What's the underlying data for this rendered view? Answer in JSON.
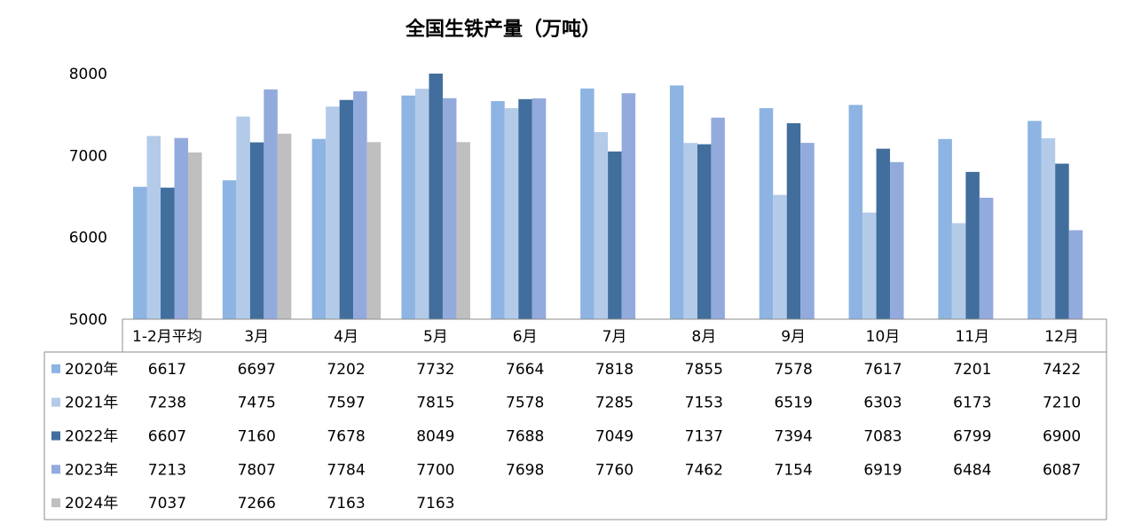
{
  "chart_data": {
    "type": "bar",
    "title": "全国生铁产量（万吨）",
    "xlabel": "",
    "ylabel": "",
    "ylim": [
      5000,
      8000
    ],
    "yticks": [
      5000,
      6000,
      7000,
      8000
    ],
    "grid": false,
    "legend": "in data table, left column",
    "categories": [
      "1-2月平均",
      "3月",
      "4月",
      "5月",
      "6月",
      "7月",
      "8月",
      "9月",
      "10月",
      "11月",
      "12月"
    ],
    "series": [
      {
        "name": "2020年",
        "color": "#8DB4E2",
        "values": [
          6617,
          6697,
          7202,
          7732,
          7664,
          7818,
          7855,
          7578,
          7617,
          7201,
          7422
        ]
      },
      {
        "name": "2021年",
        "color": "#B3CBE9",
        "values": [
          7238,
          7475,
          7597,
          7815,
          7578,
          7285,
          7153,
          6519,
          6303,
          6173,
          7210
        ]
      },
      {
        "name": "2022年",
        "color": "#416E9C",
        "values": [
          6607,
          7160,
          7678,
          8049,
          7688,
          7049,
          7137,
          7394,
          7083,
          6799,
          6900
        ]
      },
      {
        "name": "2023年",
        "color": "#93AADD",
        "values": [
          7213,
          7807,
          7784,
          7700,
          7698,
          7760,
          7462,
          7154,
          6919,
          6484,
          6087
        ]
      },
      {
        "name": "2024年",
        "color": "#BFBFBF",
        "values": [
          7037,
          7266,
          7163,
          7163,
          null,
          null,
          null,
          null,
          null,
          null,
          null
        ]
      }
    ]
  }
}
